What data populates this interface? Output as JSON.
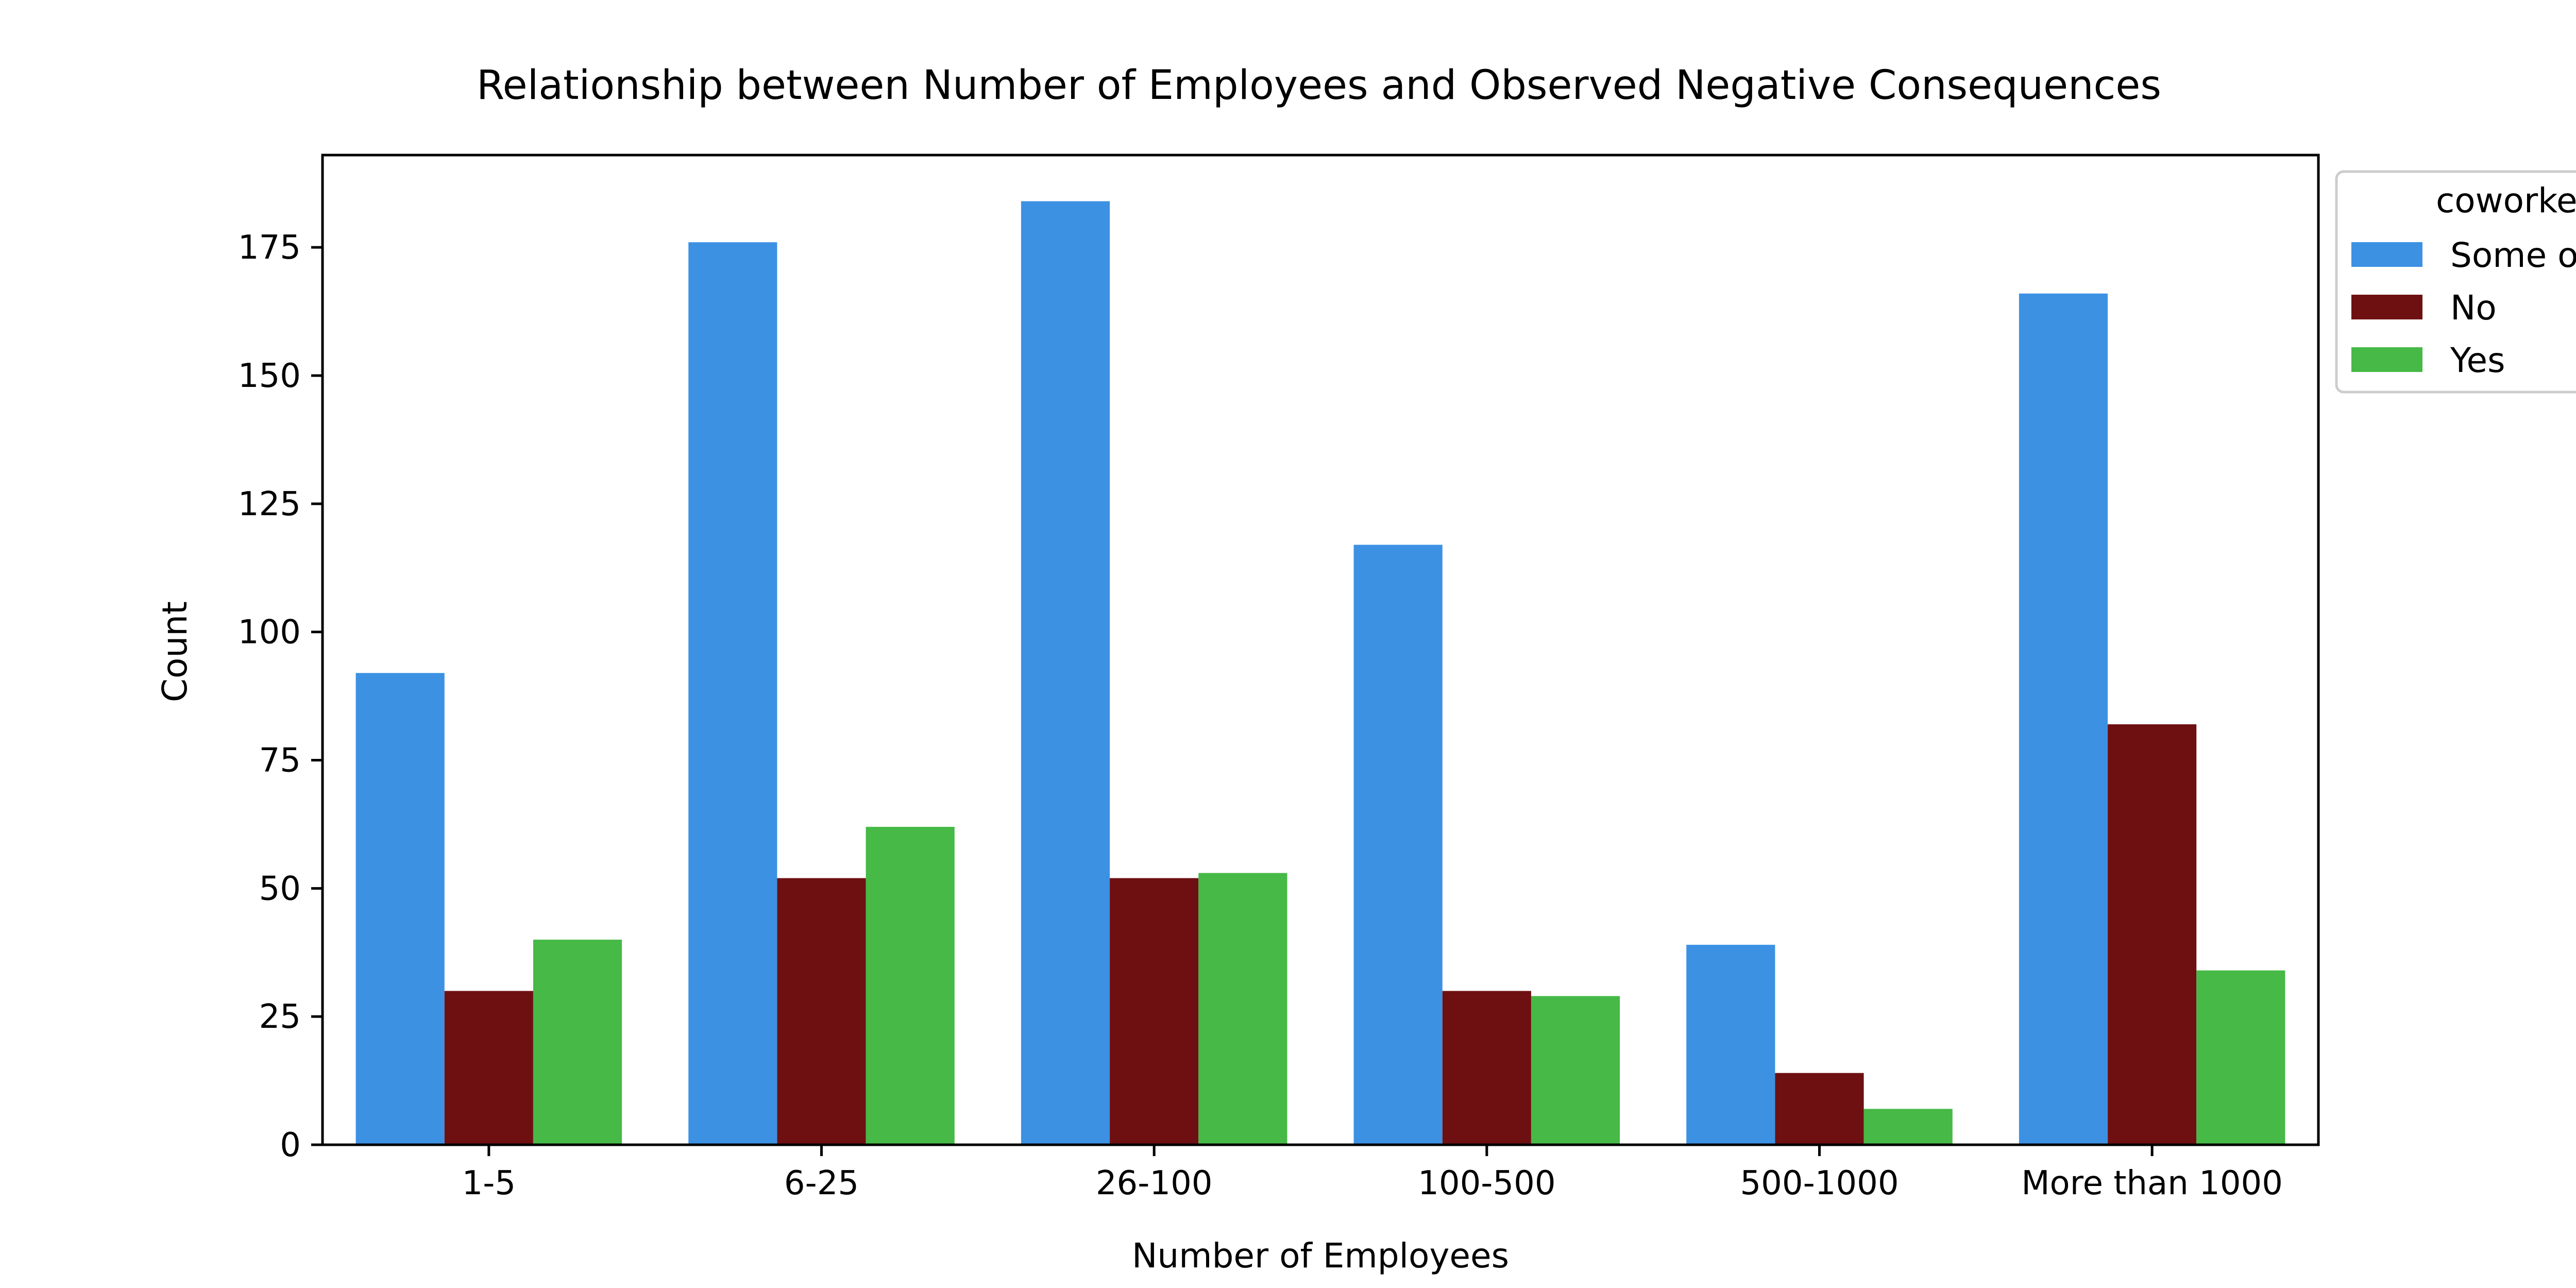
{
  "chart_data": {
    "type": "bar",
    "title": "Relationship between Number of Employees and Observed Negative Consequences",
    "xlabel": "Number of Employees",
    "ylabel": "Count",
    "categories": [
      "1-5",
      "6-25",
      "26-100",
      "100-500",
      "500-1000",
      "More than 1000"
    ],
    "ylim": [
      0,
      193
    ],
    "yticks": [
      0,
      25,
      50,
      75,
      100,
      125,
      150,
      175
    ],
    "grid": false,
    "legend": {
      "title": "coworke",
      "placement": "outside upper right (clipped)"
    },
    "series": [
      {
        "name": "Some o",
        "color": "#3c91e3",
        "values": [
          92,
          176,
          184,
          117,
          39,
          166
        ]
      },
      {
        "name": "No",
        "color": "#6e1012",
        "values": [
          30,
          52,
          52,
          30,
          14,
          82
        ]
      },
      {
        "name": "Yes",
        "color": "#46b946",
        "values": [
          40,
          62,
          53,
          29,
          7,
          34
        ]
      }
    ]
  }
}
